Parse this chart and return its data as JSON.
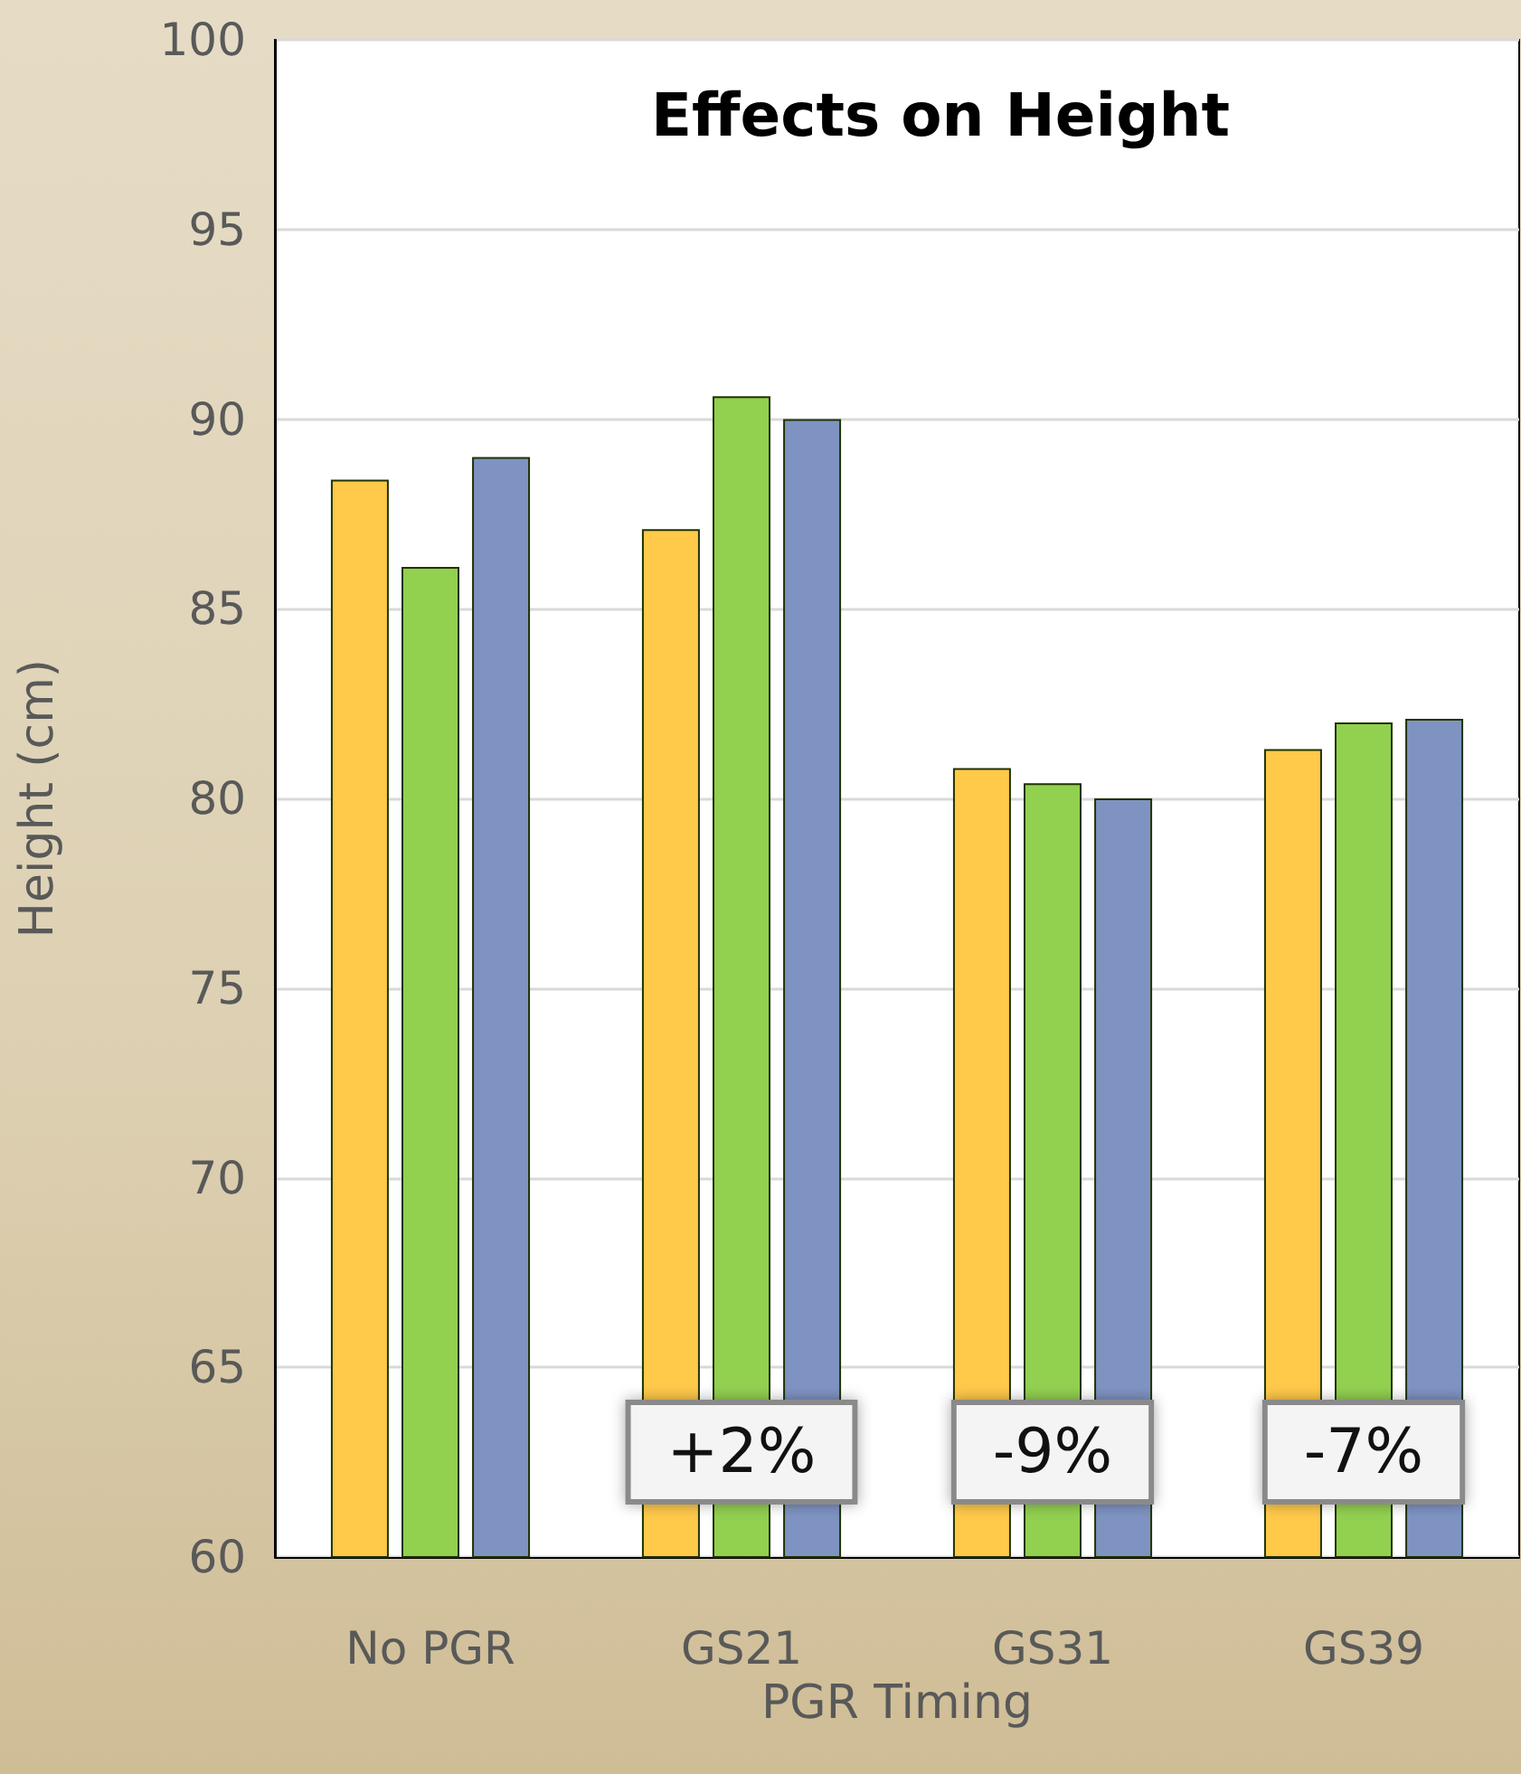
{
  "chart_data": {
    "type": "bar",
    "title": "Effects on Height",
    "xlabel": "PGR Timing",
    "ylabel": "Height (cm)",
    "categories": [
      "No PGR",
      "GS21",
      "GS31",
      "GS39"
    ],
    "series": [
      {
        "color": "#ffc94a",
        "values": [
          88.4,
          87.1,
          80.8,
          81.3
        ]
      },
      {
        "color": "#92d050",
        "values": [
          86.1,
          90.6,
          80.4,
          82.0
        ]
      },
      {
        "color": "#7f93c2",
        "values": [
          89.0,
          90.0,
          80.0,
          82.1
        ]
      }
    ],
    "ylim": [
      60,
      100
    ],
    "yticks": [
      60,
      65,
      70,
      75,
      80,
      85,
      90,
      95,
      100
    ],
    "grid": "y",
    "annotations": [
      "+2%",
      "-9%",
      "-7%"
    ]
  }
}
